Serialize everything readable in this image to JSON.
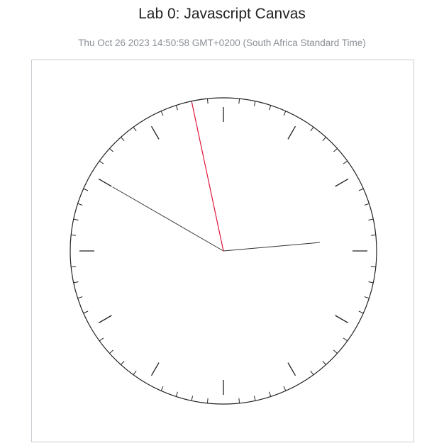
{
  "page": {
    "title": "Lab 0: Javascript Canvas",
    "datetime": "Thu Oct 26 2023 14:50:58 GMT+0200 (South Africa Standard Time)"
  },
  "clock": {
    "time": {
      "hours": 14,
      "minutes": 50,
      "seconds": 58
    },
    "colors": {
      "face_stroke": "#222222",
      "hour_hand": "#333333",
      "minute_hand": "#333333",
      "second_hand": "#e0143c",
      "ticks": "#222222"
    }
  }
}
